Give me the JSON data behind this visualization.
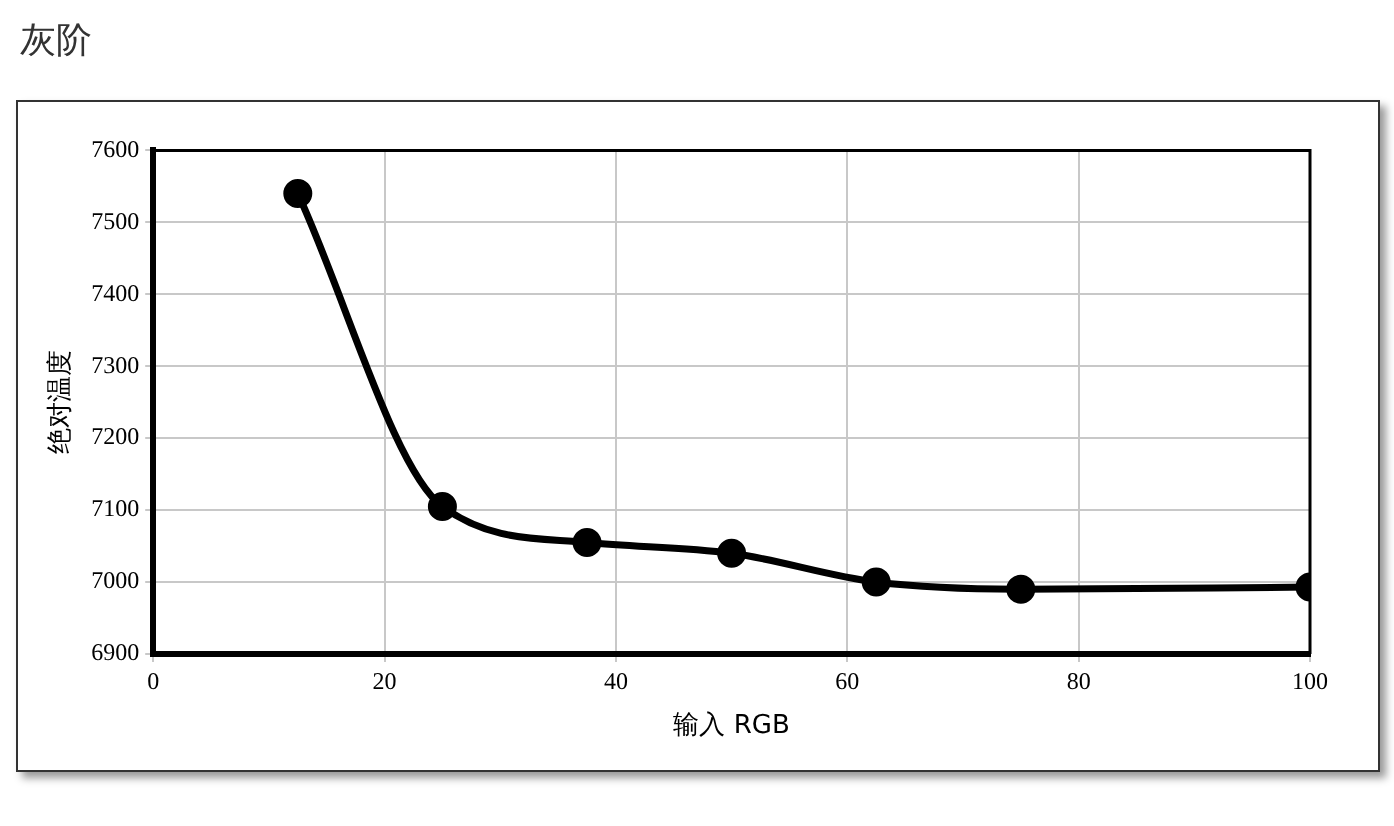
{
  "chart_data": {
    "type": "line",
    "title": "灰阶",
    "xlabel": "输入 RGB",
    "ylabel": "绝对温度",
    "x": [
      12.5,
      25,
      37.5,
      50,
      62.5,
      75,
      100
    ],
    "series": [
      {
        "color": "#000000",
        "values": [
          7540,
          7105,
          7055,
          7040,
          7000,
          6990,
          6993
        ]
      }
    ],
    "xlim": [
      0,
      100
    ],
    "xticks": [
      0,
      20,
      40,
      60,
      80,
      100
    ],
    "ylim": [
      6900,
      7600
    ],
    "yticks": [
      6900,
      7000,
      7100,
      7200,
      7300,
      7400,
      7500,
      7600
    ],
    "grid": true,
    "legend": false,
    "marker": "circle",
    "line_style": "solid"
  }
}
